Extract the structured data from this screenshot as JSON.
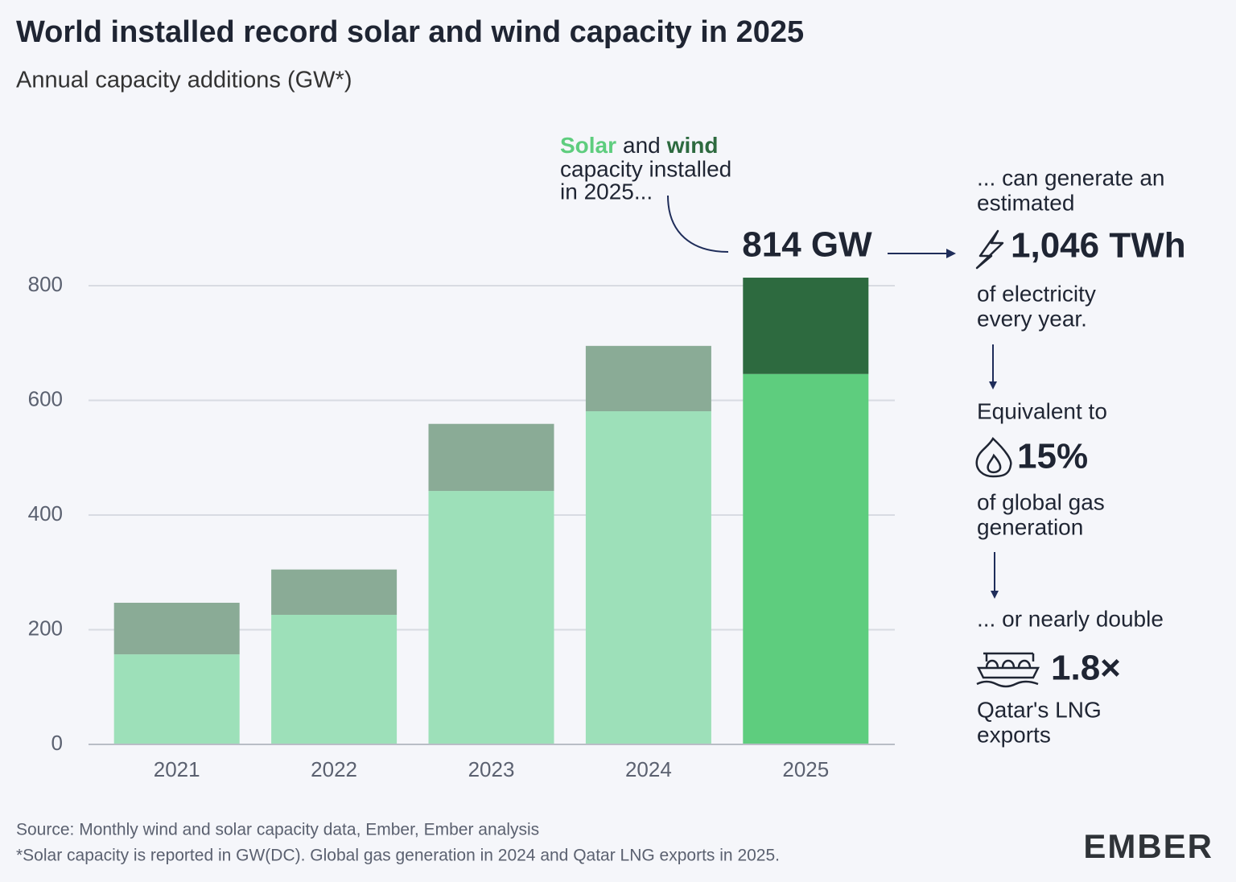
{
  "chart_data": {
    "type": "stacked_bar",
    "title": "World installed record solar and wind capacity in 2025",
    "subtitle": "Annual capacity additions (GW*)",
    "categories": [
      "2021",
      "2022",
      "2023",
      "2024",
      "2025"
    ],
    "series": [
      {
        "name": "Solar",
        "color": "#9de0b9",
        "colors": [
          "#9de0b9",
          "#9de0b9",
          "#9de0b9",
          "#9de0b9",
          "#5ecd7e"
        ],
        "values": [
          157,
          226,
          442,
          581,
          646
        ]
      },
      {
        "name": "wind",
        "color": "#2d6a3f",
        "colors": [
          "#8aab96",
          "#8aab96",
          "#8aab96",
          "#8aab96",
          "#2d6a3f"
        ],
        "values": [
          90,
          79,
          117,
          114,
          168
        ]
      }
    ],
    "ylim": [
      0,
      830
    ],
    "yticks": [
      0,
      200,
      400,
      600,
      800
    ],
    "grid": true,
    "annotation": {
      "and": "and",
      "line2": "capacity installed",
      "line3": "in 2025...",
      "total": "814 GW"
    }
  },
  "side_panel": {
    "intro1": "... can generate an",
    "intro2": "estimated",
    "twh": "1,046 TWh",
    "twh_note1": "of electricity",
    "twh_note2": "every year.",
    "equiv": "Equivalent to",
    "gas": "15%",
    "gas_note1": "of global gas",
    "gas_note2": "generation",
    "double": "... or nearly double",
    "lng": "1.8×",
    "lng_note1": "Qatar's LNG",
    "lng_note2": "exports"
  },
  "footer": {
    "source": "Source: Monthly wind and solar capacity data, Ember, Ember analysis",
    "note": "*Solar capacity is reported in GW(DC). Global gas generation in 2024 and Qatar LNG exports in 2025.",
    "logo": "EMBER"
  }
}
